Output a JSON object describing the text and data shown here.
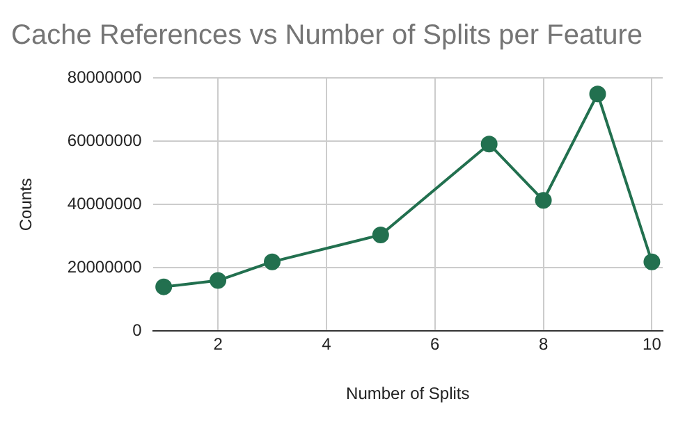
{
  "chart_data": {
    "type": "line",
    "title": "Cache References vs Number of Splits per Feature",
    "xlabel": "Number of Splits",
    "ylabel": "Counts",
    "x": [
      1,
      2,
      3,
      5,
      7,
      8,
      9,
      10
    ],
    "series": [
      {
        "color": "#22704f",
        "values": [
          14000000,
          16000000,
          21900000,
          30400000,
          59100000,
          41300000,
          74900000,
          21900000
        ]
      }
    ],
    "xlim": [
      0.8,
      10.2
    ],
    "xticks": [
      2,
      4,
      6,
      8,
      10
    ],
    "ylim": [
      0,
      80000000
    ],
    "yticks": [
      0,
      20000000,
      40000000,
      60000000,
      80000000
    ],
    "grid": true,
    "legend": false,
    "marker": "circle",
    "line_style": "solid"
  }
}
